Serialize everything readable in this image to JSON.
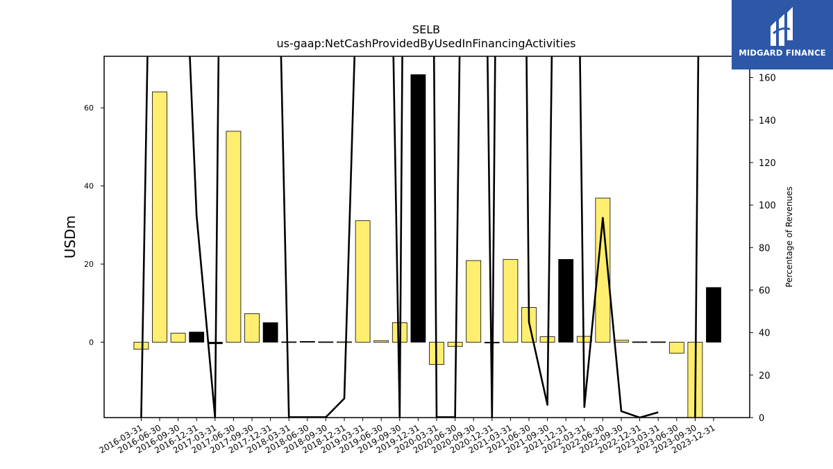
{
  "chart_data": {
    "type": "bar",
    "title": "SELB",
    "subtitle": "us-gaap:NetCashProvidedByUsedInFinancingActivities",
    "ylabel_left": "USDm",
    "ylabel_right": "Percentage of Revenues",
    "ylim_left": [
      -19.3,
      73.2
    ],
    "ylim_right": [
      0,
      170
    ],
    "yticks_left": [
      0,
      20,
      40,
      60
    ],
    "yticks_right": [
      0,
      20,
      40,
      60,
      80,
      100,
      120,
      140,
      160
    ],
    "grid": false,
    "categories": [
      "2016-03-31",
      "2016-06-30",
      "2016-09-30",
      "2016-12-31",
      "2017-03-31",
      "2017-06-30",
      "2017-09-30",
      "2017-12-31",
      "2018-03-31",
      "2018-06-30",
      "2018-09-30",
      "2018-12-31",
      "2019-03-31",
      "2019-06-30",
      "2019-09-30",
      "2019-12-31",
      "2020-03-31",
      "2020-06-30",
      "2020-09-30",
      "2020-12-31",
      "2021-03-31",
      "2021-06-30",
      "2021-09-30",
      "2021-12-31",
      "2022-03-31",
      "2022-06-30",
      "2022-09-30",
      "2022-12-31",
      "2023-03-31",
      "2023-06-30",
      "2023-09-30",
      "2023-12-31"
    ],
    "values": [
      -1.8,
      64.1,
      2.3,
      2.6,
      -0.4,
      54.0,
      7.3,
      5.0,
      0.1,
      0.2,
      0.1,
      0.1,
      31.1,
      0.4,
      5.0,
      68.5,
      -5.7,
      -1.1,
      20.9,
      -0.2,
      21.2,
      8.9,
      1.4,
      21.2,
      1.5,
      36.9,
      0.5,
      0.1,
      0.1,
      -2.8,
      -19.3,
      14.0
    ],
    "bar_colors": [
      "#ffee70",
      "#ffee70",
      "#ffee70",
      "#000000",
      "#000000",
      "#ffee70",
      "#ffee70",
      "#000000",
      "#000000",
      "#000000",
      "#000000",
      "#ffee70",
      "#ffee70",
      "#ffee70",
      "#ffee70",
      "#000000",
      "#ffee70",
      "#ffee70",
      "#ffee70",
      "#000000",
      "#ffee70",
      "#ffee70",
      "#ffee70",
      "#000000",
      "#ffee70",
      "#ffee70",
      "#ffee70",
      "#000000",
      "#000000",
      "#ffee70",
      "#ffee70",
      "#000000"
    ],
    "line_series": {
      "axis": "right",
      "color": "#000000",
      "values": [
        0,
        500,
        300,
        95,
        0,
        900,
        600,
        400,
        0.2,
        0.2,
        0.2,
        9,
        300,
        500,
        0,
        1200,
        0.2,
        0.2,
        700,
        0,
        1000,
        45,
        6,
        700,
        5,
        94,
        3,
        0,
        2.5,
        null,
        0,
        1000
      ]
    }
  },
  "logo": {
    "text": "MIDGARD FINANCE",
    "background": "#2d58a8"
  }
}
